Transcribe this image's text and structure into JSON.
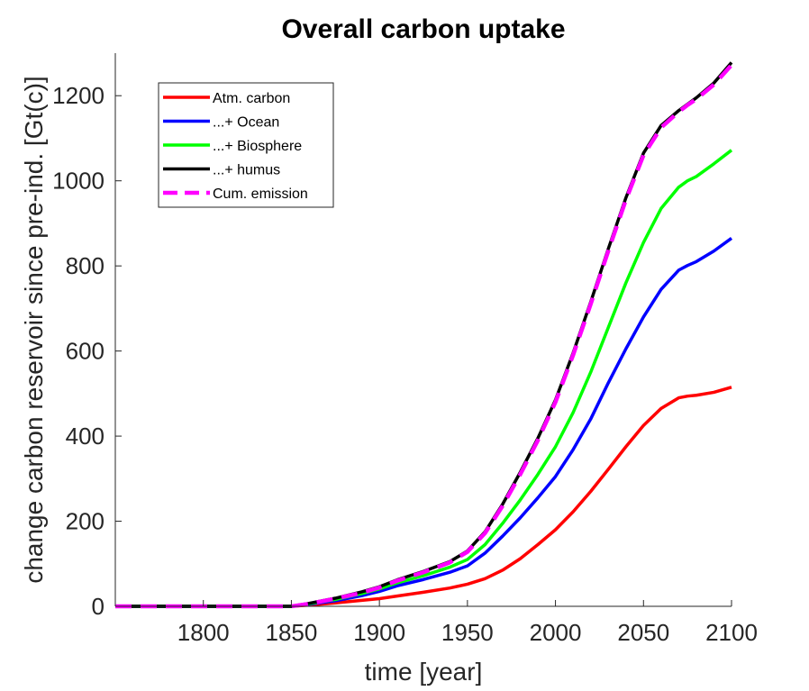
{
  "chart_data": {
    "type": "line",
    "title": "Overall carbon uptake",
    "xlabel": "time [year]",
    "ylabel": "change carbon reservoir since pre-ind. [Gt(c)]",
    "xlim": [
      1750,
      2100
    ],
    "ylim": [
      0,
      1300
    ],
    "xticks": [
      1800,
      1850,
      1900,
      1950,
      2000,
      2050,
      2100
    ],
    "yticks": [
      0,
      200,
      400,
      600,
      800,
      1000,
      1200
    ],
    "grid": false,
    "legend_position": "top-left",
    "series": [
      {
        "name": "Atm. carbon",
        "color": "#ff0000",
        "style": "solid",
        "x": [
          1750,
          1850,
          1860,
          1875,
          1890,
          1900,
          1910,
          1925,
          1940,
          1950,
          1960,
          1970,
          1980,
          1990,
          2000,
          2010,
          2020,
          2030,
          2040,
          2050,
          2060,
          2070,
          2075,
          2080,
          2090,
          2100
        ],
        "y": [
          0,
          0,
          3,
          8,
          14,
          18,
          24,
          33,
          43,
          52,
          65,
          85,
          112,
          145,
          180,
          222,
          270,
          322,
          375,
          425,
          465,
          490,
          494,
          496,
          503,
          515
        ]
      },
      {
        "name": "...+ Ocean",
        "color": "#0000ff",
        "style": "solid",
        "x": [
          1750,
          1850,
          1860,
          1875,
          1890,
          1900,
          1910,
          1925,
          1940,
          1950,
          1960,
          1970,
          1980,
          1990,
          2000,
          2010,
          2020,
          2030,
          2040,
          2050,
          2060,
          2070,
          2075,
          2080,
          2090,
          2100
        ],
        "y": [
          0,
          0,
          5,
          13,
          25,
          35,
          48,
          63,
          80,
          95,
          125,
          165,
          208,
          255,
          305,
          368,
          440,
          525,
          605,
          680,
          745,
          790,
          801,
          810,
          835,
          865
        ]
      },
      {
        "name": "...+ Biosphere",
        "color": "#00ff00",
        "style": "solid",
        "x": [
          1750,
          1850,
          1860,
          1875,
          1890,
          1900,
          1910,
          1925,
          1940,
          1950,
          1960,
          1970,
          1980,
          1990,
          2000,
          2010,
          2020,
          2030,
          2040,
          2050,
          2060,
          2070,
          2075,
          2080,
          2090,
          2100
        ],
        "y": [
          0,
          0,
          6,
          16,
          30,
          41,
          55,
          72,
          92,
          110,
          145,
          195,
          250,
          310,
          375,
          455,
          550,
          655,
          760,
          855,
          935,
          985,
          1000,
          1010,
          1040,
          1072
        ]
      },
      {
        "name": "...+ humus",
        "color": "#000000",
        "style": "solid",
        "x": [
          1750,
          1850,
          1860,
          1875,
          1890,
          1900,
          1910,
          1925,
          1940,
          1950,
          1960,
          1970,
          1980,
          1990,
          2000,
          2010,
          2020,
          2030,
          2040,
          2050,
          2060,
          2070,
          2075,
          2080,
          2090,
          2100
        ],
        "y": [
          0,
          0,
          7,
          19,
          34,
          46,
          62,
          82,
          105,
          130,
          175,
          240,
          315,
          395,
          485,
          595,
          715,
          840,
          960,
          1065,
          1130,
          1165,
          1180,
          1195,
          1230,
          1278
        ]
      },
      {
        "name": "Cum. emission",
        "color": "#ff00ff",
        "style": "dashed",
        "x": [
          1750,
          1850,
          1860,
          1875,
          1890,
          1900,
          1910,
          1925,
          1940,
          1950,
          1960,
          1970,
          1980,
          1990,
          2000,
          2010,
          2020,
          2030,
          2040,
          2050,
          2060,
          2070,
          2075,
          2080,
          2090,
          2100
        ],
        "y": [
          0,
          0,
          6,
          18,
          32,
          44,
          60,
          80,
          103,
          128,
          172,
          236,
          310,
          390,
          480,
          590,
          710,
          835,
          955,
          1060,
          1125,
          1162,
          1178,
          1192,
          1226,
          1272
        ]
      }
    ]
  }
}
